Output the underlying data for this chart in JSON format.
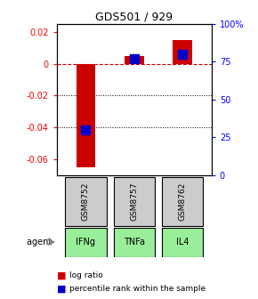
{
  "title": "GDS501 / 929",
  "samples": [
    "GSM8752",
    "GSM8757",
    "GSM8762"
  ],
  "agents": [
    "IFNg",
    "TNFa",
    "IL4"
  ],
  "log_ratios": [
    -0.065,
    0.005,
    0.015
  ],
  "percentile_ranks": [
    30,
    77,
    80
  ],
  "ylim_left": [
    -0.07,
    0.025
  ],
  "ylim_right": [
    0,
    100
  ],
  "left_yticks": [
    0.02,
    0.0,
    -0.02,
    -0.04,
    -0.06
  ],
  "right_yticks": [
    100,
    75,
    50,
    25,
    0
  ],
  "left_ytick_labels": [
    "0.02",
    "0",
    "-0.02",
    "-0.04",
    "-0.06"
  ],
  "right_ytick_labels": [
    "100%",
    "75",
    "50",
    "25",
    "0"
  ],
  "bar_color": "#cc0000",
  "percentile_color": "#0000cc",
  "zero_line_color": "#cc0000",
  "grid_color": "#000000",
  "sample_box_color": "#cccccc",
  "agent_box_color": "#99ee99",
  "agent_box_border": "#000000",
  "legend_bar_label": "log ratio",
  "legend_pct_label": "percentile rank within the sample",
  "bar_width": 0.4,
  "percentile_square_size": 50
}
